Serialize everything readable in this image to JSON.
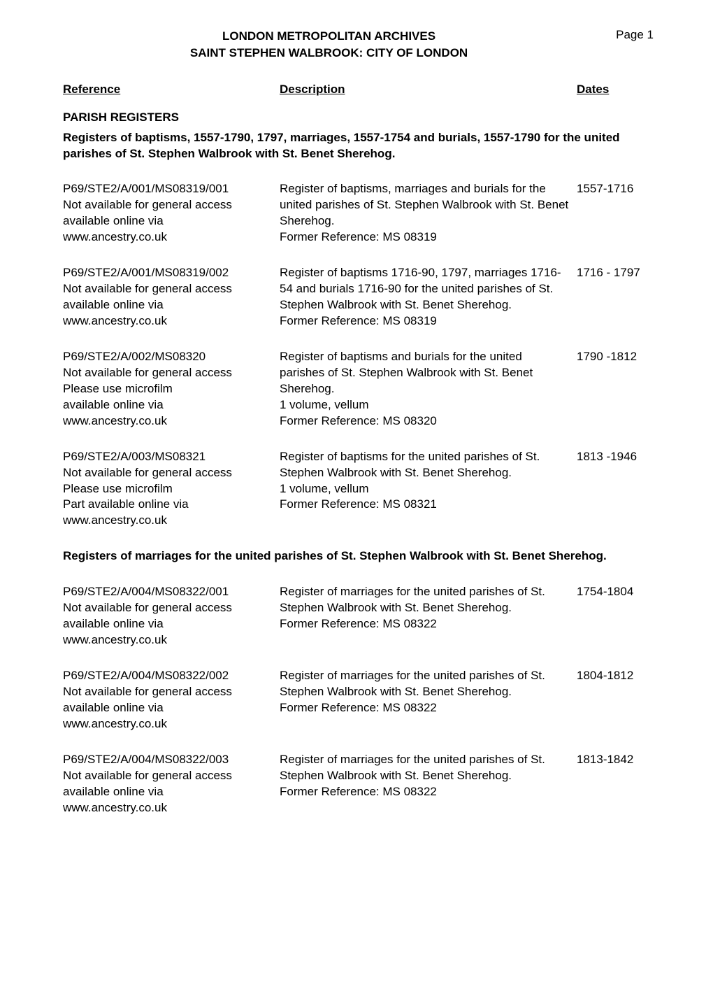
{
  "header": {
    "archives_line1": "LONDON METROPOLITAN ARCHIVES",
    "archives_line2": "SAINT STEPHEN WALBROOK: CITY OF LONDON",
    "page_label": "Page 1"
  },
  "columns": {
    "reference": "Reference",
    "description": "Description",
    "dates": "Dates"
  },
  "sections": [
    {
      "heading": "PARISH REGISTERS",
      "subheading": "Registers of baptisms, 1557-1790, 1797, marriages, 1557-1754 and burials, 1557-1790 for the united parishes of St. Stephen Walbrook with St. Benet Sherehog.",
      "entries": [
        {
          "reference": "P69/STE2/A/001/MS08319/001\nNot available for general access\navailable online via\nwww.ancestry.co.uk",
          "description": "Register of baptisms, marriages and burials for the united parishes of St. Stephen Walbrook with St. Benet Sherehog.\nFormer Reference: MS 08319",
          "dates": "1557-1716"
        },
        {
          "reference": "P69/STE2/A/001/MS08319/002\nNot available for general access\navailable online via\nwww.ancestry.co.uk",
          "description": "Register of baptisms 1716-90, 1797, marriages 1716-54 and burials 1716-90 for the united parishes of St. Stephen Walbrook with St. Benet Sherehog.\nFormer Reference: MS 08319",
          "dates": "1716 - 1797"
        },
        {
          "reference": "P69/STE2/A/002/MS08320\nNot available for general access\nPlease use microfilm\navailable online via\nwww.ancestry.co.uk",
          "description": "Register of baptisms and burials for the united parishes of St. Stephen Walbrook with St. Benet Sherehog.\n1 volume, vellum\nFormer Reference: MS 08320",
          "dates": "1790 -1812"
        },
        {
          "reference": "P69/STE2/A/003/MS08321\nNot available for general access\nPlease use microfilm\nPart available online via\nwww.ancestry.co.uk",
          "description": "Register of baptisms for the united parishes of St. Stephen Walbrook with St. Benet Sherehog.\n1 volume, vellum\nFormer Reference: MS 08321",
          "dates": "1813 -1946"
        }
      ]
    },
    {
      "heading": null,
      "subheading": "Registers of marriages for the united parishes of St. Stephen Walbrook with St. Benet Sherehog.",
      "entries": [
        {
          "reference": "P69/STE2/A/004/MS08322/001\nNot available for general access\navailable online via\nwww.ancestry.co.uk",
          "description": "Register of marriages for the united parishes of St. Stephen Walbrook with St. Benet Sherehog.\nFormer Reference: MS 08322",
          "dates": "1754-1804"
        },
        {
          "reference": "P69/STE2/A/004/MS08322/002\nNot available for general access\navailable online via\nwww.ancestry.co.uk",
          "description": "Register of marriages for the united parishes of St. Stephen Walbrook with St. Benet Sherehog.\nFormer Reference: MS 08322",
          "dates": "1804-1812"
        },
        {
          "reference": "P69/STE2/A/004/MS08322/003\nNot available for general access\navailable online via\nwww.ancestry.co.uk",
          "description": "Register of marriages for the united parishes of St. Stephen Walbrook with St. Benet Sherehog.\nFormer Reference: MS 08322",
          "dates": "1813-1842"
        }
      ]
    }
  ]
}
